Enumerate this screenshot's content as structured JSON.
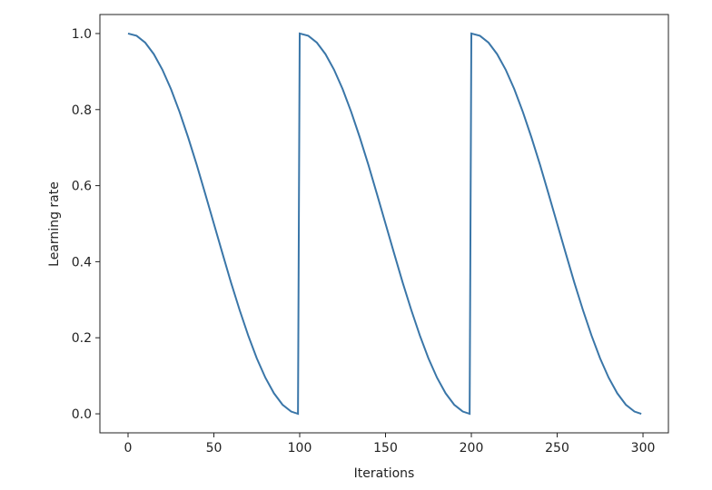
{
  "chart_data": {
    "type": "line",
    "x_label": "Iterations",
    "y_label": "Learning rate",
    "x": [
      0,
      5,
      10,
      15,
      20,
      25,
      30,
      35,
      40,
      45,
      50,
      55,
      60,
      65,
      70,
      75,
      80,
      85,
      90,
      95,
      99,
      100,
      105,
      110,
      115,
      120,
      125,
      130,
      135,
      140,
      145,
      150,
      155,
      160,
      165,
      170,
      175,
      180,
      185,
      190,
      195,
      199,
      200,
      205,
      210,
      215,
      220,
      225,
      230,
      235,
      240,
      245,
      250,
      255,
      260,
      265,
      270,
      275,
      280,
      285,
      290,
      295,
      299
    ],
    "values": [
      1,
      0.994,
      0.976,
      0.946,
      0.905,
      0.854,
      0.794,
      0.727,
      0.655,
      0.578,
      0.5,
      0.422,
      0.345,
      0.273,
      0.206,
      0.146,
      0.095,
      0.054,
      0.024,
      0.006,
      0,
      1,
      0.994,
      0.976,
      0.946,
      0.905,
      0.854,
      0.794,
      0.727,
      0.655,
      0.578,
      0.5,
      0.422,
      0.345,
      0.273,
      0.206,
      0.146,
      0.095,
      0.054,
      0.024,
      0.006,
      0,
      1,
      0.994,
      0.976,
      0.946,
      0.905,
      0.854,
      0.794,
      0.727,
      0.655,
      0.578,
      0.5,
      0.422,
      0.345,
      0.273,
      0.206,
      0.146,
      0.095,
      0.054,
      0.024,
      0.006,
      0
    ],
    "color": "#3a76a8",
    "xlim": [
      -16.4,
      314.8
    ],
    "xticks": [
      0,
      50,
      100,
      150,
      200,
      250,
      300
    ],
    "ylim": [
      -0.05,
      1.05
    ],
    "yticks": [
      {
        "value": 0,
        "label": "0.0"
      },
      0.2,
      0.4,
      0.6,
      0.8,
      {
        "value": 1,
        "label": "1.0"
      }
    ]
  }
}
